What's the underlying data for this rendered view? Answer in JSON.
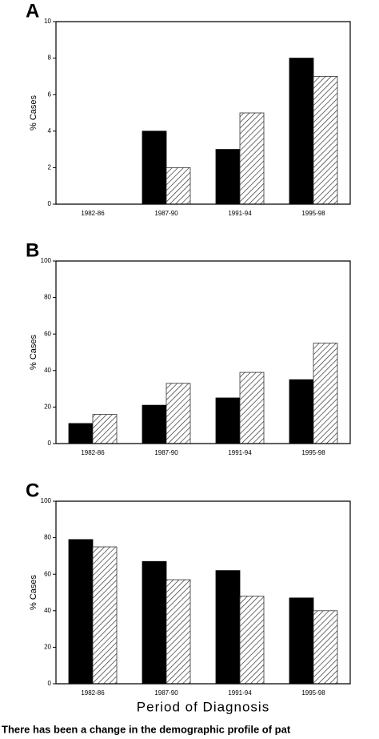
{
  "chart_data": [
    {
      "type": "bar",
      "label": "A",
      "ylabel": "% Cases",
      "categories": [
        "1982-86",
        "1987-90",
        "1991-94",
        "1995-98"
      ],
      "series": [
        {
          "color": "#000000",
          "values": [
            0,
            4,
            3,
            8
          ]
        },
        {
          "color": "#333333",
          "hatch": true,
          "values": [
            0,
            2,
            5,
            7
          ]
        }
      ],
      "ylim": [
        0,
        10
      ],
      "yticks": [
        0,
        2,
        4,
        6,
        8,
        10
      ]
    },
    {
      "type": "bar",
      "label": "B",
      "ylabel": "% Cases",
      "categories": [
        "1982-86",
        "1987-90",
        "1991-94",
        "1995-98"
      ],
      "series": [
        {
          "color": "#000000",
          "values": [
            11,
            21,
            25,
            35
          ]
        },
        {
          "color": "#333333",
          "hatch": true,
          "values": [
            16,
            33,
            39,
            55
          ]
        }
      ],
      "ylim": [
        0,
        100
      ],
      "yticks": [
        0,
        20,
        40,
        60,
        80,
        100
      ]
    },
    {
      "type": "bar",
      "label": "C",
      "ylabel": "% Cases",
      "xlabel": "Period of Diagnosis",
      "categories": [
        "1982-86",
        "1987-90",
        "1991-94",
        "1995-98"
      ],
      "series": [
        {
          "color": "#000000",
          "values": [
            79,
            67,
            62,
            47
          ]
        },
        {
          "color": "#333333",
          "hatch": true,
          "values": [
            75,
            57,
            48,
            40
          ]
        }
      ],
      "ylim": [
        0,
        100
      ],
      "yticks": [
        0,
        20,
        40,
        60,
        80,
        100
      ]
    }
  ],
  "caption": "There has been a change in the demographic profile of pat"
}
